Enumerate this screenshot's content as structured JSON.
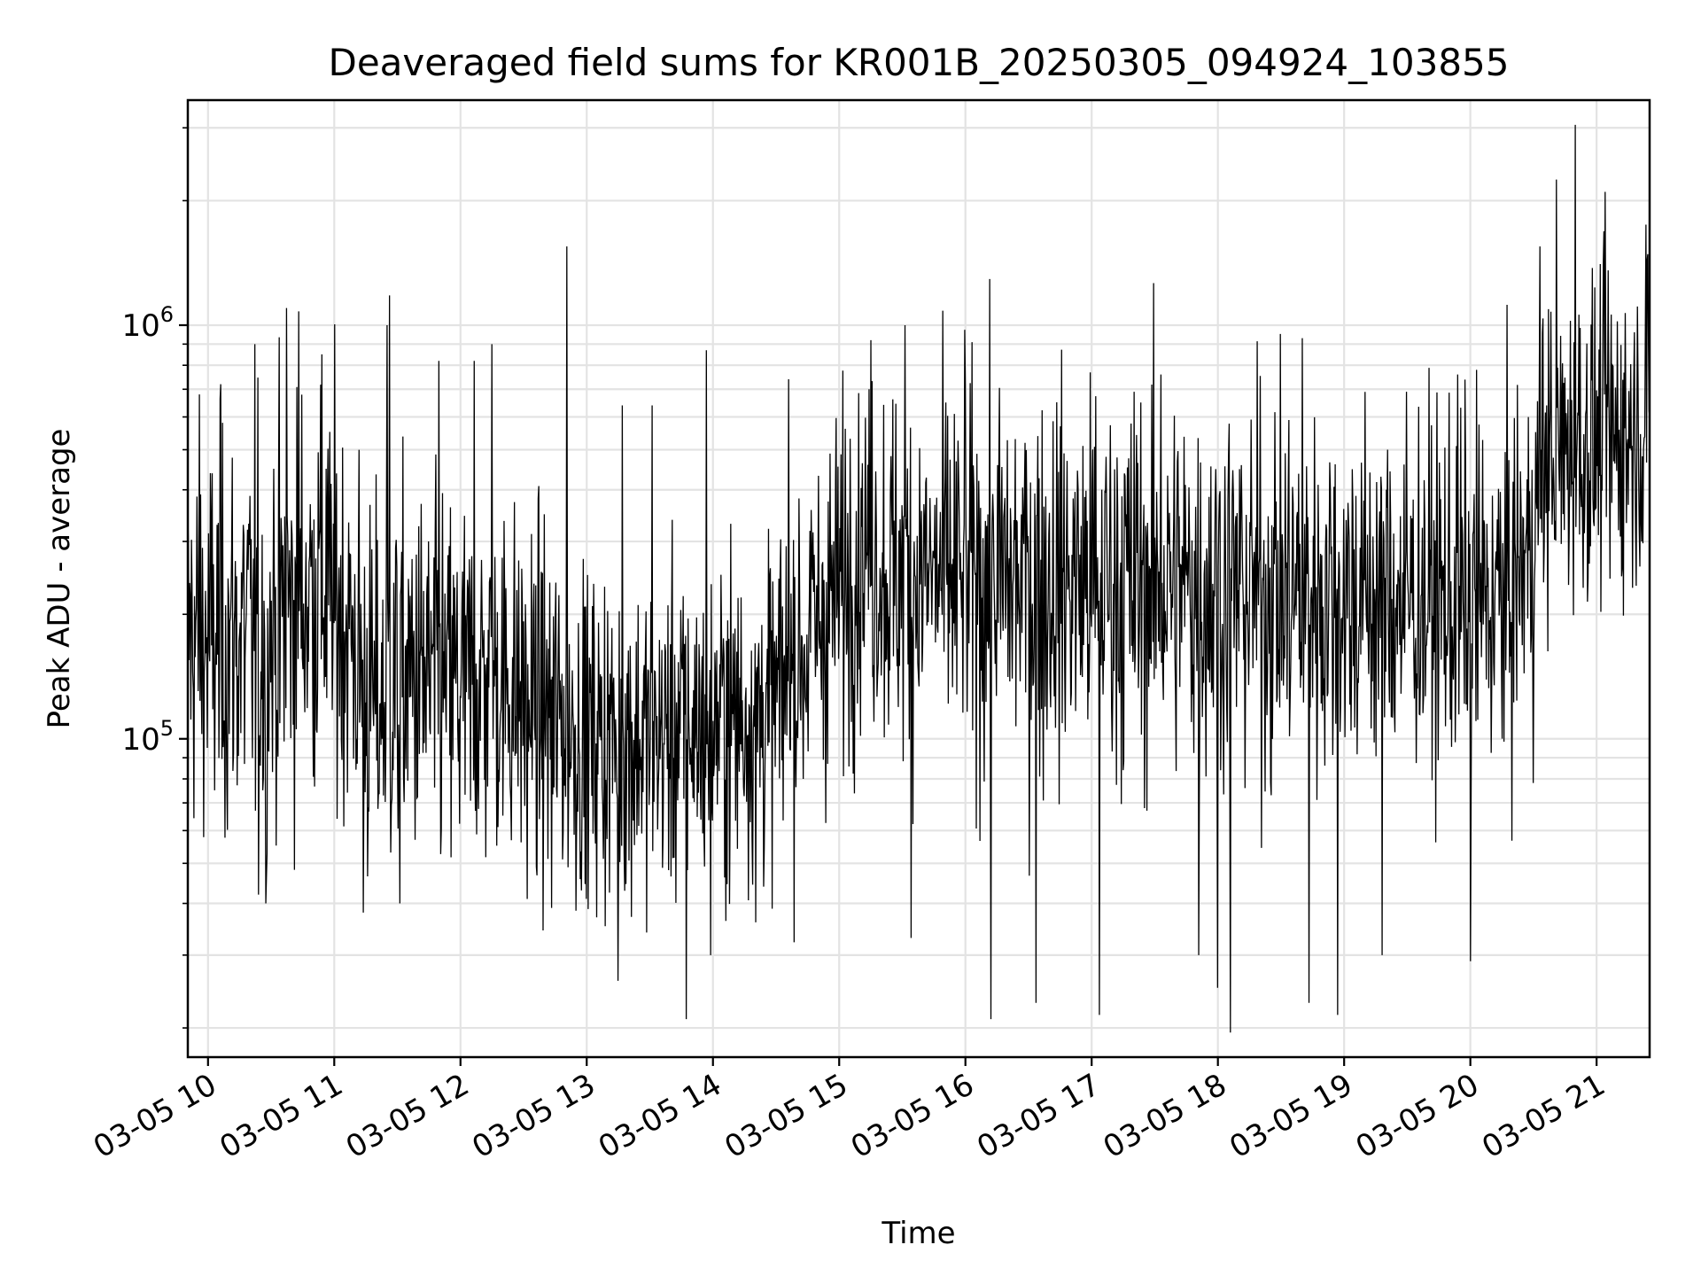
{
  "chart_data": {
    "type": "line",
    "title": "Deaveraged field sums for KR001B_20250305_094924_103855",
    "xlabel": "Time",
    "ylabel": "Peak ADU - average",
    "y_scale": "log",
    "ylim": [
      17000,
      3500000
    ],
    "xlim_hours": [
      9.84,
      21.42
    ],
    "grid": true,
    "x_ticks": [
      {
        "label": "03-05 10",
        "hour": 10
      },
      {
        "label": "03-05 11",
        "hour": 11
      },
      {
        "label": "03-05 12",
        "hour": 12
      },
      {
        "label": "03-05 13",
        "hour": 13
      },
      {
        "label": "03-05 14",
        "hour": 14
      },
      {
        "label": "03-05 15",
        "hour": 15
      },
      {
        "label": "03-05 16",
        "hour": 16
      },
      {
        "label": "03-05 17",
        "hour": 17
      },
      {
        "label": "03-05 18",
        "hour": 18
      },
      {
        "label": "03-05 19",
        "hour": 19
      },
      {
        "label": "03-05 20",
        "hour": 20
      },
      {
        "label": "03-05 21",
        "hour": 21
      }
    ],
    "y_ticks": [
      {
        "base": "10",
        "exp": "5",
        "value": 100000
      },
      {
        "base": "10",
        "exp": "6",
        "value": 1000000
      }
    ],
    "series": [
      {
        "color": "#000000",
        "profile": {
          "hours": [
            9.84,
            10.0,
            10.5,
            10.8,
            11.0,
            11.3,
            11.6,
            12.0,
            12.3,
            12.6,
            13.0,
            13.5,
            14.0,
            14.5,
            14.8,
            15.0,
            15.2,
            15.4,
            16.0,
            17.0,
            18.0,
            19.0,
            19.5,
            20.0,
            20.3,
            20.5,
            20.6,
            21.0,
            21.42
          ],
          "median": [
            180000,
            170000,
            180000,
            230000,
            220000,
            120000,
            140000,
            130000,
            140000,
            120000,
            100000,
            100000,
            110000,
            120000,
            180000,
            230000,
            300000,
            250000,
            240000,
            240000,
            230000,
            220000,
            220000,
            210000,
            220000,
            300000,
            480000,
            520000,
            580000
          ],
          "spread": [
            0.22,
            0.24,
            0.25,
            0.25,
            0.24,
            0.24,
            0.23,
            0.23,
            0.22,
            0.21,
            0.2,
            0.2,
            0.2,
            0.2,
            0.22,
            0.22,
            0.2,
            0.22,
            0.23,
            0.24,
            0.24,
            0.23,
            0.22,
            0.22,
            0.22,
            0.22,
            0.2,
            0.2,
            0.18
          ]
        },
        "peaks": [
          {
            "hour": 9.93,
            "value": 680000
          },
          {
            "hour": 10.1,
            "value": 720000
          },
          {
            "hour": 10.37,
            "value": 900000
          },
          {
            "hour": 10.62,
            "value": 1100000
          },
          {
            "hour": 10.72,
            "value": 1080000
          },
          {
            "hour": 10.9,
            "value": 850000
          },
          {
            "hour": 11.42,
            "value": 1000000
          },
          {
            "hour": 11.44,
            "value": 1180000
          },
          {
            "hour": 11.83,
            "value": 820000
          },
          {
            "hour": 12.11,
            "value": 820000
          },
          {
            "hour": 12.25,
            "value": 900000
          },
          {
            "hour": 12.84,
            "value": 1550000
          },
          {
            "hour": 13.28,
            "value": 640000
          },
          {
            "hour": 13.52,
            "value": 640000
          },
          {
            "hour": 13.95,
            "value": 870000
          },
          {
            "hour": 14.6,
            "value": 740000
          },
          {
            "hour": 15.25,
            "value": 920000
          },
          {
            "hour": 15.52,
            "value": 1000000
          },
          {
            "hour": 16.0,
            "value": 720000
          },
          {
            "hour": 17.55,
            "value": 760000
          },
          {
            "hour": 18.67,
            "value": 930000
          },
          {
            "hour": 19.9,
            "value": 760000
          },
          {
            "hour": 20.05,
            "value": 780000
          },
          {
            "hour": 20.55,
            "value": 1550000
          },
          {
            "hour": 20.68,
            "value": 2250000
          },
          {
            "hour": 20.83,
            "value": 3050000
          },
          {
            "hour": 21.07,
            "value": 2100000
          },
          {
            "hour": 21.39,
            "value": 1750000
          }
        ],
        "dips": [
          {
            "hour": 10.4,
            "value": 42000
          },
          {
            "hour": 10.46,
            "value": 40000
          },
          {
            "hour": 11.23,
            "value": 38000
          },
          {
            "hour": 11.52,
            "value": 40000
          },
          {
            "hour": 12.53,
            "value": 41000
          },
          {
            "hour": 12.72,
            "value": 39000
          },
          {
            "hour": 13.25,
            "value": 26000
          },
          {
            "hour": 13.79,
            "value": 21000
          },
          {
            "hour": 13.98,
            "value": 30000
          },
          {
            "hour": 14.34,
            "value": 36000
          },
          {
            "hour": 15.57,
            "value": 33000
          },
          {
            "hour": 16.2,
            "value": 21000
          },
          {
            "hour": 16.56,
            "value": 23000
          },
          {
            "hour": 17.06,
            "value": 21500
          },
          {
            "hour": 17.85,
            "value": 30000
          },
          {
            "hour": 18.0,
            "value": 25000
          },
          {
            "hour": 18.1,
            "value": 19500
          },
          {
            "hour": 18.72,
            "value": 23000
          },
          {
            "hour": 18.95,
            "value": 21500
          },
          {
            "hour": 19.3,
            "value": 30000
          },
          {
            "hour": 20.0,
            "value": 29000
          }
        ]
      }
    ]
  }
}
